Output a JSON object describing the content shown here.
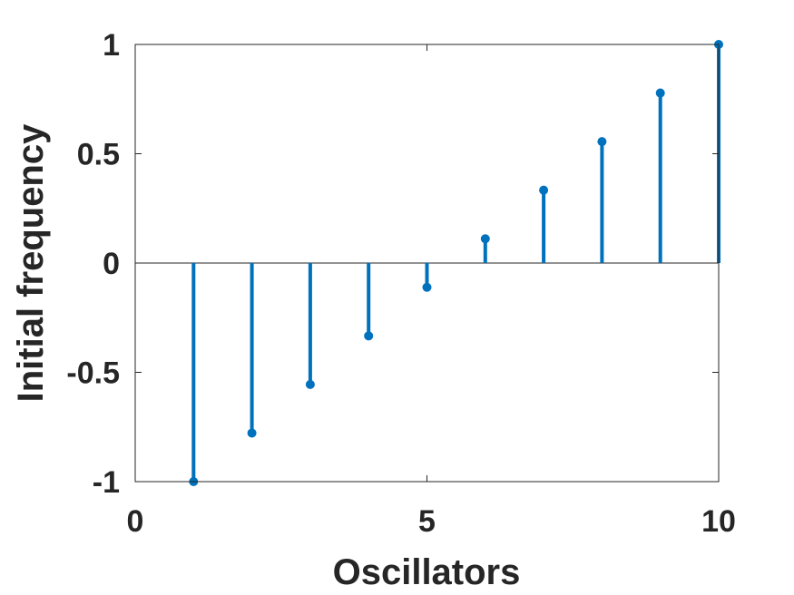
{
  "chart_data": {
    "type": "stem",
    "xlabel": "Oscillators",
    "ylabel": "Initial frequency",
    "xlim": [
      0,
      10
    ],
    "ylim": [
      -1,
      1
    ],
    "x_ticks": [
      0,
      5,
      10
    ],
    "y_ticks": [
      -1,
      -0.5,
      0,
      0.5,
      1
    ],
    "x_tick_labels": [
      "0",
      "5",
      "10"
    ],
    "y_tick_labels": [
      "-1",
      "-0.5",
      "0",
      "0.5",
      "1"
    ],
    "grid": false,
    "baseline": 0,
    "color": "#0072BD",
    "series": [
      {
        "x": [
          1,
          2,
          3,
          4,
          5,
          6,
          7,
          8,
          9,
          10
        ],
        "values": [
          -1,
          -0.7778,
          -0.5556,
          -0.3333,
          -0.1111,
          0.1111,
          0.3333,
          0.5556,
          0.7778,
          1
        ]
      }
    ]
  }
}
